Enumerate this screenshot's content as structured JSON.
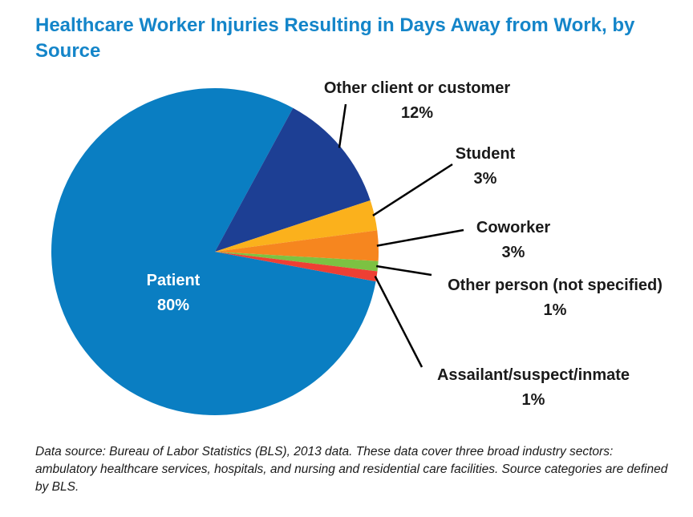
{
  "title": "Healthcare Worker Injuries Resulting in Days Away from Work, by Source",
  "footnote": "Data source: Bureau of Labor Statistics (BLS), 2013 data. These data cover three broad industry sectors: ambulatory healthcare services, hospitals, and nursing and residential care facilities. Source categories are defined by BLS.",
  "chart_data": {
    "type": "pie",
    "title": "Healthcare Worker Injuries Resulting in Days Away from Work, by Source",
    "unit": "%",
    "slices": [
      {
        "label": "Patient",
        "value": 80,
        "value_label": "80%",
        "color": "#0a7ec2"
      },
      {
        "label": "Other client or customer",
        "value": 12,
        "value_label": "12%",
        "color": "#1d3f94"
      },
      {
        "label": "Student",
        "value": 3,
        "value_label": "3%",
        "color": "#fbb11c"
      },
      {
        "label": "Coworker",
        "value": 3,
        "value_label": "3%",
        "color": "#f6861f"
      },
      {
        "label": "Other person (not specified)",
        "value": 1,
        "value_label": "1%",
        "color": "#7cc242"
      },
      {
        "label": "Assailant/suspect/inmate",
        "value": 1,
        "value_label": "1%",
        "color": "#ee3f34"
      }
    ]
  }
}
